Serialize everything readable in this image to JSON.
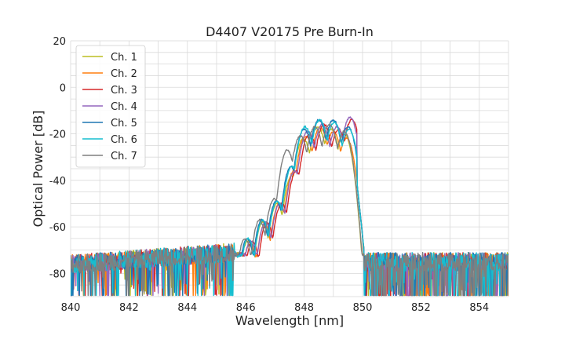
{
  "chart_data": {
    "type": "line",
    "title": "D4407 V20175 Pre Burn-In",
    "xlabel": "Wavelength [nm]",
    "ylabel": "Optical Power [dB]",
    "xlim": [
      840,
      855
    ],
    "ylim": [
      -90,
      20
    ],
    "xticks": [
      840,
      842,
      844,
      846,
      848,
      850,
      852,
      854
    ],
    "yticks": [
      20,
      0,
      -20,
      -40,
      -60,
      -80
    ],
    "grid": true,
    "legend_position": "top-left",
    "series": [
      {
        "name": "Ch. 1",
        "color": "#bcbd22",
        "peaks": [
          [
            846.1,
            -66,
            0.12
          ],
          [
            846.6,
            -58,
            0.12
          ],
          [
            847.1,
            -50,
            0.13
          ],
          [
            847.6,
            -38,
            0.13
          ],
          [
            848.0,
            -22,
            0.14
          ],
          [
            848.5,
            -17,
            0.14
          ],
          [
            848.95,
            -18,
            0.14
          ],
          [
            849.4,
            -20,
            0.14
          ]
        ]
      },
      {
        "name": "Ch. 2",
        "color": "#ff7f0e",
        "peaks": [
          [
            846.15,
            -67,
            0.12
          ],
          [
            846.65,
            -59,
            0.12
          ],
          [
            847.15,
            -50,
            0.13
          ],
          [
            847.65,
            -36,
            0.13
          ],
          [
            848.05,
            -21,
            0.14
          ],
          [
            848.55,
            -17,
            0.14
          ],
          [
            849.0,
            -19,
            0.14
          ],
          [
            849.45,
            -22,
            0.14
          ]
        ]
      },
      {
        "name": "Ch. 3",
        "color": "#d62728",
        "peaks": [
          [
            846.2,
            -66,
            0.12
          ],
          [
            846.7,
            -58,
            0.12
          ],
          [
            847.2,
            -50,
            0.13
          ],
          [
            847.7,
            -36,
            0.13
          ],
          [
            848.15,
            -20,
            0.14
          ],
          [
            848.65,
            -16,
            0.14
          ],
          [
            849.15,
            -18,
            0.14
          ],
          [
            849.6,
            -14,
            0.14
          ]
        ]
      },
      {
        "name": "Ch. 4",
        "color": "#9467bd",
        "peaks": [
          [
            846.2,
            -66,
            0.12
          ],
          [
            846.7,
            -58,
            0.12
          ],
          [
            847.2,
            -50,
            0.13
          ],
          [
            847.7,
            -36,
            0.13
          ],
          [
            848.15,
            -19,
            0.14
          ],
          [
            848.65,
            -16,
            0.14
          ],
          [
            849.15,
            -17,
            0.14
          ],
          [
            849.6,
            -13,
            0.14
          ]
        ]
      },
      {
        "name": "Ch. 5",
        "color": "#1f77b4",
        "peaks": [
          [
            846.05,
            -65,
            0.12
          ],
          [
            846.55,
            -57,
            0.12
          ],
          [
            847.05,
            -49,
            0.13
          ],
          [
            847.55,
            -34,
            0.13
          ],
          [
            848.0,
            -18,
            0.14
          ],
          [
            848.5,
            -14,
            0.14
          ],
          [
            849.0,
            -14,
            0.14
          ],
          [
            849.5,
            -17,
            0.14
          ]
        ]
      },
      {
        "name": "Ch. 6",
        "color": "#17becf",
        "peaks": [
          [
            846.05,
            -65,
            0.12
          ],
          [
            846.55,
            -57,
            0.12
          ],
          [
            847.05,
            -49,
            0.13
          ],
          [
            847.55,
            -34,
            0.13
          ],
          [
            848.0,
            -17,
            0.14
          ],
          [
            848.5,
            -14,
            0.14
          ],
          [
            849.0,
            -15,
            0.14
          ],
          [
            849.5,
            -18,
            0.14
          ]
        ]
      },
      {
        "name": "Ch. 7",
        "color": "#7f7f7f",
        "peaks": [
          [
            846.0,
            -65,
            0.12
          ],
          [
            846.5,
            -57,
            0.12
          ],
          [
            847.0,
            -48,
            0.13
          ],
          [
            847.45,
            -27,
            0.13
          ],
          [
            847.9,
            -21,
            0.14
          ],
          [
            848.4,
            -17,
            0.14
          ],
          [
            848.9,
            -16,
            0.14
          ],
          [
            849.4,
            -19,
            0.14
          ]
        ]
      }
    ]
  }
}
